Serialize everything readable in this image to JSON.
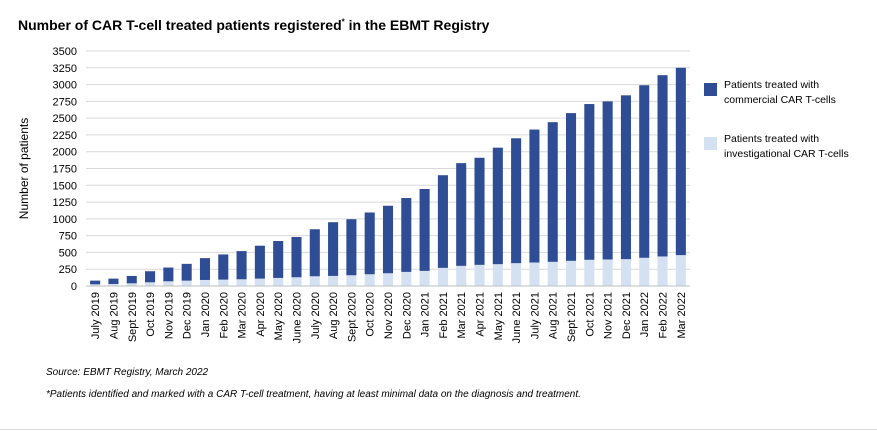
{
  "title": {
    "main": "Number of CAR T-cell treated patients registered",
    "superscript": "*",
    "suffix": " in the EBMT Registry"
  },
  "source": "Source:  EBMT Registry, March 2022",
  "footnote": "*Patients identified and marked with a CAR T-cell treatment, having at least minimal data on the diagnosis and treatment.",
  "colors": {
    "commercial": "#2e4d94",
    "investigational": "#d4e1f2",
    "grid": "#d9d9d9"
  },
  "chart_data": {
    "type": "bar",
    "stacked": true,
    "ylabel": "Number of patients",
    "ylim": [
      0,
      3500
    ],
    "yticks": [
      0,
      250,
      500,
      750,
      1000,
      1250,
      1500,
      1750,
      2000,
      2250,
      2500,
      2750,
      3000,
      3250,
      3500
    ],
    "grid": true,
    "legend_position": "right",
    "categories": [
      "July 2019",
      "Aug 2019",
      "Sept 2019",
      "Oct 2019",
      "Nov 2019",
      "Dec 2019",
      "Jan 2020",
      "Feb 2020",
      "Mar 2020",
      "Apr 2020",
      "May 2020",
      "June 2020",
      "July 2020",
      "Aug 2020",
      "Sept 2020",
      "Oct 2020",
      "Nov 2020",
      "Dec 2020",
      "Jan 2021",
      "Feb 2021",
      "Mar 2021",
      "Apr 2021",
      "May 2021",
      "June 2021",
      "July 2021",
      "Aug 2021",
      "Sept 2021",
      "Oct 2021",
      "Nov 2021",
      "Dec 2021",
      "Jan 2022",
      "Feb 2022",
      "Mar 2022"
    ],
    "series": [
      {
        "name": "Patients treated with investigational  CAR T-cells",
        "key": "investigational",
        "values": [
          25,
          30,
          40,
          55,
          70,
          80,
          90,
          95,
          100,
          110,
          120,
          130,
          145,
          150,
          160,
          175,
          190,
          210,
          225,
          270,
          300,
          315,
          325,
          340,
          350,
          360,
          375,
          390,
          395,
          400,
          420,
          440,
          460
        ]
      },
      {
        "name": "Patients treated with commercial CAR T-cells",
        "key": "commercial",
        "values": [
          55,
          80,
          110,
          165,
          205,
          250,
          325,
          375,
          420,
          490,
          550,
          600,
          700,
          800,
          835,
          920,
          1005,
          1100,
          1220,
          1380,
          1530,
          1595,
          1735,
          1860,
          1980,
          2080,
          2200,
          2320,
          2355,
          2440,
          2570,
          2700,
          2790
        ]
      }
    ]
  }
}
